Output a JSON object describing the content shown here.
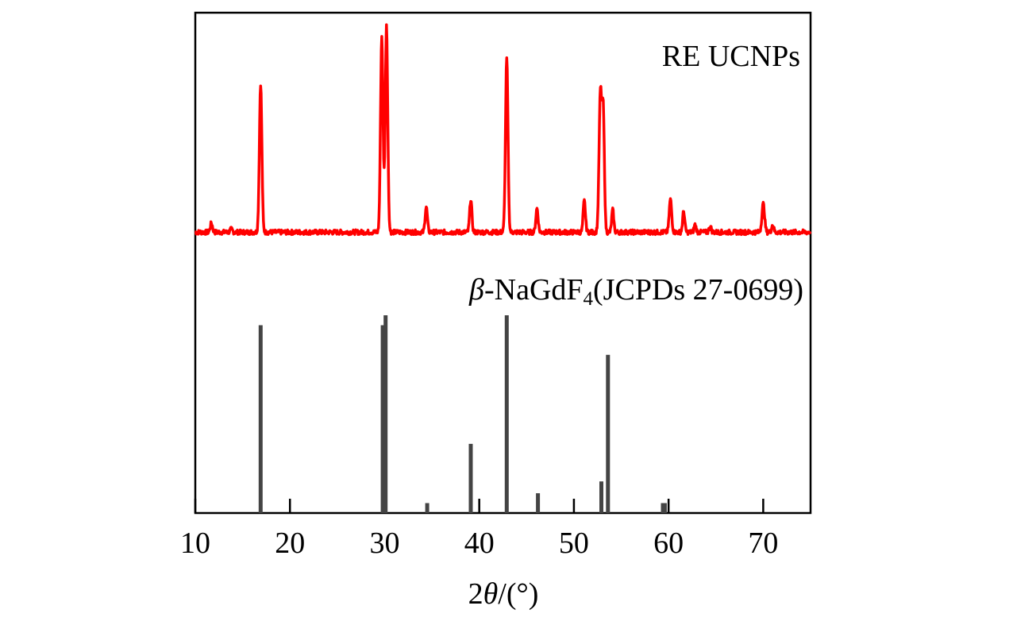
{
  "chart_data": {
    "type": "line",
    "xlabel_prefix": "2",
    "xlabel_symbol": "θ",
    "xlabel_suffix": "/(°)",
    "xlim": [
      10,
      75
    ],
    "xticks": [
      10,
      20,
      30,
      40,
      50,
      60,
      70
    ],
    "grid": false,
    "series": [
      {
        "name": "RE UCNPs",
        "kind": "pattern",
        "color": "#ff0000",
        "baseline": 3,
        "peaks": [
          {
            "x": 11.7,
            "h": 6,
            "w": 0.12
          },
          {
            "x": 13.8,
            "h": 2,
            "w": 0.12
          },
          {
            "x": 16.9,
            "h": 100,
            "w": 0.13
          },
          {
            "x": 29.7,
            "h": 132,
            "w": 0.13
          },
          {
            "x": 30.2,
            "h": 140,
            "w": 0.13
          },
          {
            "x": 34.4,
            "h": 17,
            "w": 0.12
          },
          {
            "x": 39.1,
            "h": 22,
            "w": 0.12
          },
          {
            "x": 42.9,
            "h": 117,
            "w": 0.13
          },
          {
            "x": 46.1,
            "h": 16,
            "w": 0.12
          },
          {
            "x": 51.1,
            "h": 21,
            "w": 0.12
          },
          {
            "x": 52.8,
            "h": 94,
            "w": 0.14
          },
          {
            "x": 53.1,
            "h": 78,
            "w": 0.12
          },
          {
            "x": 54.1,
            "h": 15,
            "w": 0.11
          },
          {
            "x": 60.2,
            "h": 22,
            "w": 0.13
          },
          {
            "x": 61.6,
            "h": 14,
            "w": 0.11
          },
          {
            "x": 62.8,
            "h": 5,
            "w": 0.11
          },
          {
            "x": 64.4,
            "h": 4,
            "w": 0.11
          },
          {
            "x": 70.0,
            "h": 19,
            "w": 0.14
          },
          {
            "x": 71.0,
            "h": 5,
            "w": 0.11
          }
        ]
      },
      {
        "name_prefix": "β",
        "name_main": "-NaGdF",
        "name_sub": "4",
        "name_suffix": "(JCPDs 27-0699)",
        "kind": "sticks",
        "color": "#444444",
        "ylim": [
          0,
          100
        ],
        "x": [
          16.9,
          29.8,
          30.1,
          34.5,
          39.1,
          42.9,
          46.2,
          52.9,
          53.6,
          59.4,
          59.6
        ],
        "y": [
          95,
          95,
          100,
          5,
          35,
          100,
          10,
          16,
          80,
          5,
          5
        ]
      }
    ]
  }
}
